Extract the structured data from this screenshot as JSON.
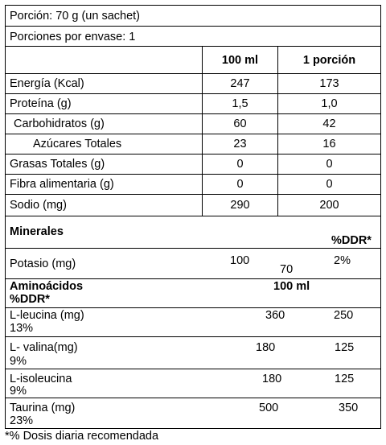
{
  "serving": "Porción: 70 g (un sachet)",
  "servings_per_container": "Porciones por envase:  1",
  "headers": {
    "per_100ml": "100 ml",
    "per_portion": "1 porción"
  },
  "nutrients": [
    {
      "name": "Energía (Kcal)",
      "per_100ml": "247",
      "per_portion": "173"
    },
    {
      "name": "Proteína (g)",
      "per_100ml": "1,5",
      "per_portion": "1,0"
    },
    {
      "name": "Carbohidratos (g)",
      "per_100ml": "60",
      "per_portion": "42"
    },
    {
      "name": "Azúcares Totales",
      "per_100ml": "23",
      "per_portion": "16"
    },
    {
      "name": "Grasas Totales (g)",
      "per_100ml": "0",
      "per_portion": "0"
    },
    {
      "name": "Fibra alimentaria (g)",
      "per_100ml": "0",
      "per_portion": "0"
    },
    {
      "name": "Sodio (mg)",
      "per_100ml": "290",
      "per_portion": "200"
    }
  ],
  "minerals": {
    "title": "Minerales",
    "ddr_header": "%DDR*",
    "potasio": {
      "name": "Potasio (mg)",
      "v1": "100",
      "v2": "70",
      "ddr": "2%"
    }
  },
  "amino": {
    "title": "Aminoácidos",
    "ddr_header": "%DDR*",
    "col_header": "100 ml",
    "rows": [
      {
        "name": "L-leucina (mg)",
        "v1": "360",
        "v2": "250",
        "ddr": "13%"
      },
      {
        "name": "L- valina(mg)",
        "v1": "180",
        "v2": "125",
        "ddr": "9%"
      },
      {
        "name": "L-isoleucina",
        "v1": "180",
        "v2": "125",
        "ddr": "9%"
      },
      {
        "name": "Taurina (mg)",
        "v1": "500",
        "v2": "350",
        "ddr": "23%"
      }
    ]
  },
  "footnote": "*% Dosis diaria recomendada"
}
